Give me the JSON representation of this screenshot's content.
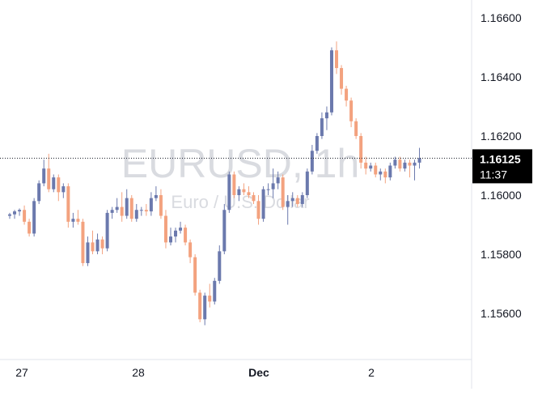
{
  "chart": {
    "symbol_watermark": "EURUSD, 1h",
    "description_watermark": "Euro / U.S. Dollar",
    "last_price_label": "1.16125",
    "countdown_label": "11:37",
    "colors": {
      "up": "#6b79ad",
      "down": "#f3a27f",
      "price_line": "#131722",
      "badge": "#000000"
    }
  },
  "chart_data": {
    "type": "candlestick",
    "symbol": "EURUSD",
    "interval": "1h",
    "ylim": [
      1.1545,
      1.1668
    ],
    "y_ticks": [
      "1.16600",
      "1.16400",
      "1.16200",
      "1.16000",
      "1.15800",
      "1.15600"
    ],
    "x_ticks": [
      "27",
      "28",
      "Dec",
      "2"
    ],
    "last_price": 1.16125,
    "candles": [
      [
        1.1593,
        1.1594,
        1.1592,
        1.15935
      ],
      [
        1.15935,
        1.1595,
        1.1592,
        1.15945
      ],
      [
        1.15945,
        1.15955,
        1.1593,
        1.1595
      ],
      [
        1.1595,
        1.15965,
        1.159,
        1.1591
      ],
      [
        1.1591,
        1.1592,
        1.1586,
        1.1587
      ],
      [
        1.1587,
        1.1599,
        1.1586,
        1.1598
      ],
      [
        1.1598,
        1.1605,
        1.1597,
        1.1604
      ],
      [
        1.1604,
        1.1612,
        1.1603,
        1.1609
      ],
      [
        1.1609,
        1.1614,
        1.1601,
        1.1602
      ],
      [
        1.1602,
        1.1607,
        1.1601,
        1.1606
      ],
      [
        1.1606,
        1.1607,
        1.1598,
        1.1601
      ],
      [
        1.1601,
        1.1604,
        1.1599,
        1.1603
      ],
      [
        1.1603,
        1.1604,
        1.1589,
        1.1591
      ],
      [
        1.1591,
        1.1594,
        1.1589,
        1.1592
      ],
      [
        1.1592,
        1.1595,
        1.159,
        1.1591
      ],
      [
        1.1591,
        1.1592,
        1.1576,
        1.1577
      ],
      [
        1.1577,
        1.1586,
        1.1576,
        1.1584
      ],
      [
        1.1584,
        1.1588,
        1.158,
        1.1581
      ],
      [
        1.1581,
        1.1587,
        1.158,
        1.1585
      ],
      [
        1.1585,
        1.1586,
        1.158,
        1.1582
      ],
      [
        1.1582,
        1.1595,
        1.1581,
        1.1594
      ],
      [
        1.1594,
        1.1596,
        1.1592,
        1.1595
      ],
      [
        1.1595,
        1.1599,
        1.1594,
        1.1596
      ],
      [
        1.1596,
        1.1601,
        1.1591,
        1.1593
      ],
      [
        1.1593,
        1.1602,
        1.1592,
        1.1599
      ],
      [
        1.1599,
        1.16,
        1.1591,
        1.1592
      ],
      [
        1.1592,
        1.1597,
        1.1591,
        1.1595
      ],
      [
        1.1595,
        1.1596,
        1.1593,
        1.1595
      ],
      [
        1.1595,
        1.1597,
        1.1593,
        1.15945
      ],
      [
        1.15945,
        1.1601,
        1.1593,
        1.1599
      ],
      [
        1.1599,
        1.1603,
        1.1598,
        1.16
      ],
      [
        1.16,
        1.1602,
        1.1592,
        1.1593
      ],
      [
        1.1593,
        1.1595,
        1.1582,
        1.1584
      ],
      [
        1.1584,
        1.1589,
        1.1583,
        1.1586
      ],
      [
        1.1586,
        1.1589,
        1.1584,
        1.1588
      ],
      [
        1.1588,
        1.1591,
        1.1587,
        1.1589
      ],
      [
        1.1589,
        1.159,
        1.1583,
        1.1584
      ],
      [
        1.1584,
        1.1585,
        1.1577,
        1.1579
      ],
      [
        1.1579,
        1.158,
        1.1566,
        1.1567
      ],
      [
        1.1567,
        1.1568,
        1.1557,
        1.1558
      ],
      [
        1.1558,
        1.1567,
        1.1556,
        1.1566
      ],
      [
        1.1566,
        1.157,
        1.1562,
        1.1564
      ],
      [
        1.1564,
        1.1572,
        1.1563,
        1.1571
      ],
      [
        1.1571,
        1.1583,
        1.157,
        1.1581
      ],
      [
        1.1581,
        1.1597,
        1.158,
        1.1595
      ],
      [
        1.1595,
        1.1608,
        1.1594,
        1.1607
      ],
      [
        1.1607,
        1.1608,
        1.1599,
        1.16
      ],
      [
        1.16,
        1.1603,
        1.1598,
        1.1602
      ],
      [
        1.1602,
        1.1604,
        1.16,
        1.1601
      ],
      [
        1.1601,
        1.1603,
        1.1599,
        1.16
      ],
      [
        1.16,
        1.1601,
        1.1597,
        1.1598
      ],
      [
        1.1598,
        1.16,
        1.159,
        1.1592
      ],
      [
        1.1592,
        1.1603,
        1.1591,
        1.1602
      ],
      [
        1.1602,
        1.1604,
        1.16,
        1.1602
      ],
      [
        1.1602,
        1.1609,
        1.1599,
        1.1604
      ],
      [
        1.1604,
        1.1608,
        1.1602,
        1.1606
      ],
      [
        1.1606,
        1.1607,
        1.1595,
        1.1596
      ],
      [
        1.1596,
        1.16,
        1.159,
        1.1598
      ],
      [
        1.1598,
        1.1601,
        1.1596,
        1.1599
      ],
      [
        1.1599,
        1.16,
        1.1596,
        1.1597
      ],
      [
        1.1597,
        1.1601,
        1.1596,
        1.16
      ],
      [
        1.16,
        1.1609,
        1.1599,
        1.1608
      ],
      [
        1.1608,
        1.1617,
        1.1607,
        1.1615
      ],
      [
        1.1615,
        1.1621,
        1.1614,
        1.162
      ],
      [
        1.162,
        1.1628,
        1.1619,
        1.1626
      ],
      [
        1.1626,
        1.163,
        1.1622,
        1.1628
      ],
      [
        1.1628,
        1.165,
        1.1627,
        1.1649
      ],
      [
        1.1649,
        1.1652,
        1.1641,
        1.1643
      ],
      [
        1.1643,
        1.1644,
        1.1634,
        1.1636
      ],
      [
        1.1636,
        1.1637,
        1.163,
        1.1632
      ],
      [
        1.1632,
        1.1633,
        1.1623,
        1.1625
      ],
      [
        1.1625,
        1.1626,
        1.1619,
        1.162
      ],
      [
        1.162,
        1.1621,
        1.1609,
        1.1611
      ],
      [
        1.1611,
        1.1613,
        1.1607,
        1.1609
      ],
      [
        1.1609,
        1.1611,
        1.1608,
        1.161
      ],
      [
        1.161,
        1.1611,
        1.1606,
        1.1607
      ],
      [
        1.1607,
        1.1609,
        1.1605,
        1.1608
      ],
      [
        1.1608,
        1.1609,
        1.1604,
        1.1606
      ],
      [
        1.1606,
        1.1611,
        1.1605,
        1.161
      ],
      [
        1.161,
        1.1613,
        1.1609,
        1.1612
      ],
      [
        1.1612,
        1.1613,
        1.1608,
        1.1609
      ],
      [
        1.1609,
        1.1612,
        1.1608,
        1.1611
      ],
      [
        1.1611,
        1.1612,
        1.1606,
        1.161
      ],
      [
        1.161,
        1.1612,
        1.1605,
        1.1611
      ],
      [
        1.1611,
        1.1616,
        1.1609,
        1.16125
      ]
    ]
  }
}
